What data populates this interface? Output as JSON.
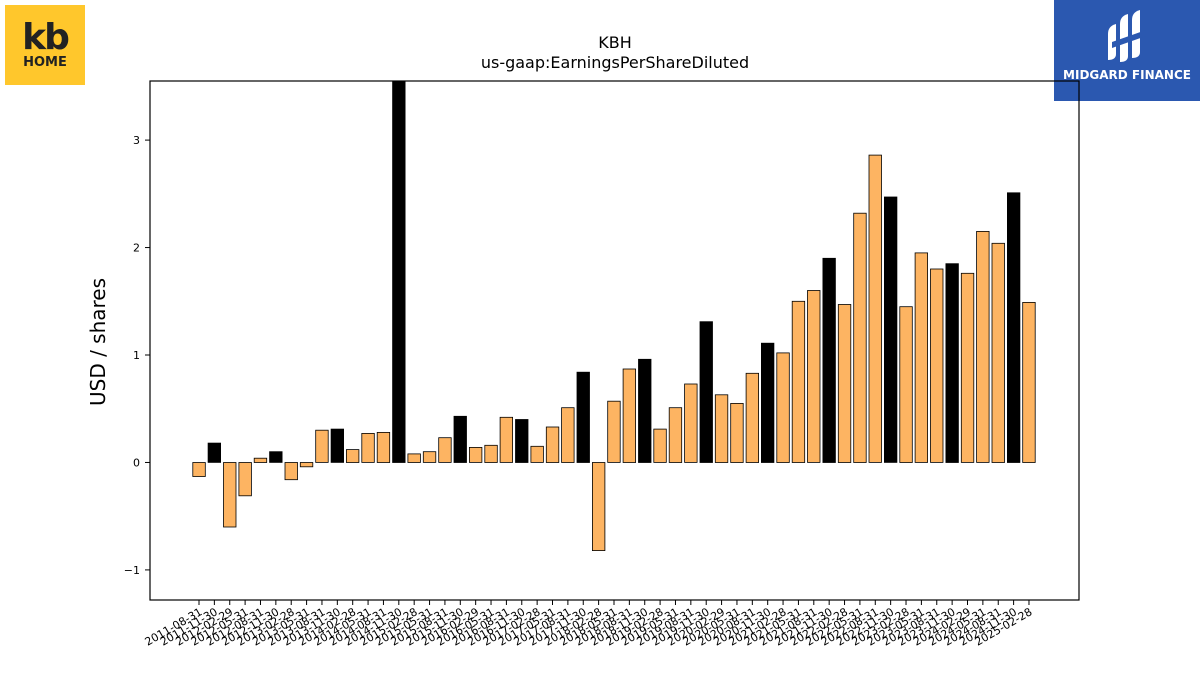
{
  "logos": {
    "left": {
      "line1": "kb",
      "line2": "HOME",
      "bg_color": "#FFC72C",
      "fg_color": "#222222"
    },
    "right": {
      "text": "MIDGARD FINANCE",
      "bg_color": "#2B58B0",
      "fg_color": "#FFFFFF"
    }
  },
  "chart_data": {
    "type": "bar",
    "title": "KBH",
    "subtitle": "us-gaap:EarningsPerShareDiluted",
    "xlabel": "",
    "ylabel": "USD / shares",
    "ylim": [
      -1.28,
      3.55
    ],
    "yticks": [
      -1,
      0,
      1,
      2,
      3
    ],
    "grid": false,
    "colors": {
      "quarter": "#FDB462",
      "annual": "#000000",
      "edge": "#000000"
    },
    "categories": [
      "2011-08-31",
      "2011-11-30",
      "2012-02-29",
      "2012-05-31",
      "2012-08-31",
      "2012-11-30",
      "2013-02-28",
      "2013-05-31",
      "2013-08-31",
      "2013-11-30",
      "2014-02-28",
      "2014-05-31",
      "2014-08-31",
      "2014-11-30",
      "2015-02-28",
      "2015-05-31",
      "2015-08-31",
      "2015-11-30",
      "2016-02-29",
      "2016-05-31",
      "2016-08-31",
      "2016-11-30",
      "2017-02-28",
      "2017-05-31",
      "2017-08-31",
      "2017-11-30",
      "2018-02-28",
      "2018-05-31",
      "2018-08-31",
      "2018-11-30",
      "2019-02-28",
      "2019-05-31",
      "2019-08-31",
      "2019-11-30",
      "2020-02-29",
      "2020-05-31",
      "2020-08-31",
      "2020-11-30",
      "2021-02-28",
      "2021-05-31",
      "2021-08-31",
      "2021-11-30",
      "2022-02-28",
      "2022-05-31",
      "2022-08-31",
      "2022-11-30",
      "2023-02-28",
      "2023-05-31",
      "2023-08-31",
      "2023-11-30",
      "2024-02-29",
      "2024-05-31",
      "2024-08-31",
      "2024-11-30",
      "2025-02-28"
    ],
    "values": [
      -0.13,
      0.18,
      -0.6,
      -0.31,
      0.04,
      0.1,
      -0.16,
      -0.04,
      0.3,
      0.31,
      0.12,
      0.27,
      0.28,
      3.55,
      0.08,
      0.1,
      0.23,
      0.43,
      0.14,
      0.16,
      0.42,
      0.4,
      0.15,
      0.33,
      0.51,
      0.84,
      -0.82,
      0.57,
      0.87,
      0.96,
      0.31,
      0.51,
      0.73,
      1.31,
      0.63,
      0.55,
      0.83,
      1.11,
      1.02,
      1.5,
      1.6,
      1.9,
      1.47,
      2.32,
      2.86,
      2.47,
      1.45,
      1.95,
      1.8,
      1.85,
      1.76,
      2.15,
      2.04,
      2.51,
      1.49
    ],
    "period": [
      "Q",
      "FY",
      "Q",
      "Q",
      "Q",
      "FY",
      "Q",
      "Q",
      "Q",
      "FY",
      "Q",
      "Q",
      "Q",
      "FY",
      "Q",
      "Q",
      "Q",
      "FY",
      "Q",
      "Q",
      "Q",
      "FY",
      "Q",
      "Q",
      "Q",
      "FY",
      "Q",
      "Q",
      "Q",
      "FY",
      "Q",
      "Q",
      "Q",
      "FY",
      "Q",
      "Q",
      "Q",
      "FY",
      "Q",
      "Q",
      "Q",
      "FY",
      "Q",
      "Q",
      "Q",
      "FY",
      "Q",
      "Q",
      "Q",
      "FY",
      "Q",
      "Q",
      "Q",
      "FY",
      "Q"
    ]
  }
}
